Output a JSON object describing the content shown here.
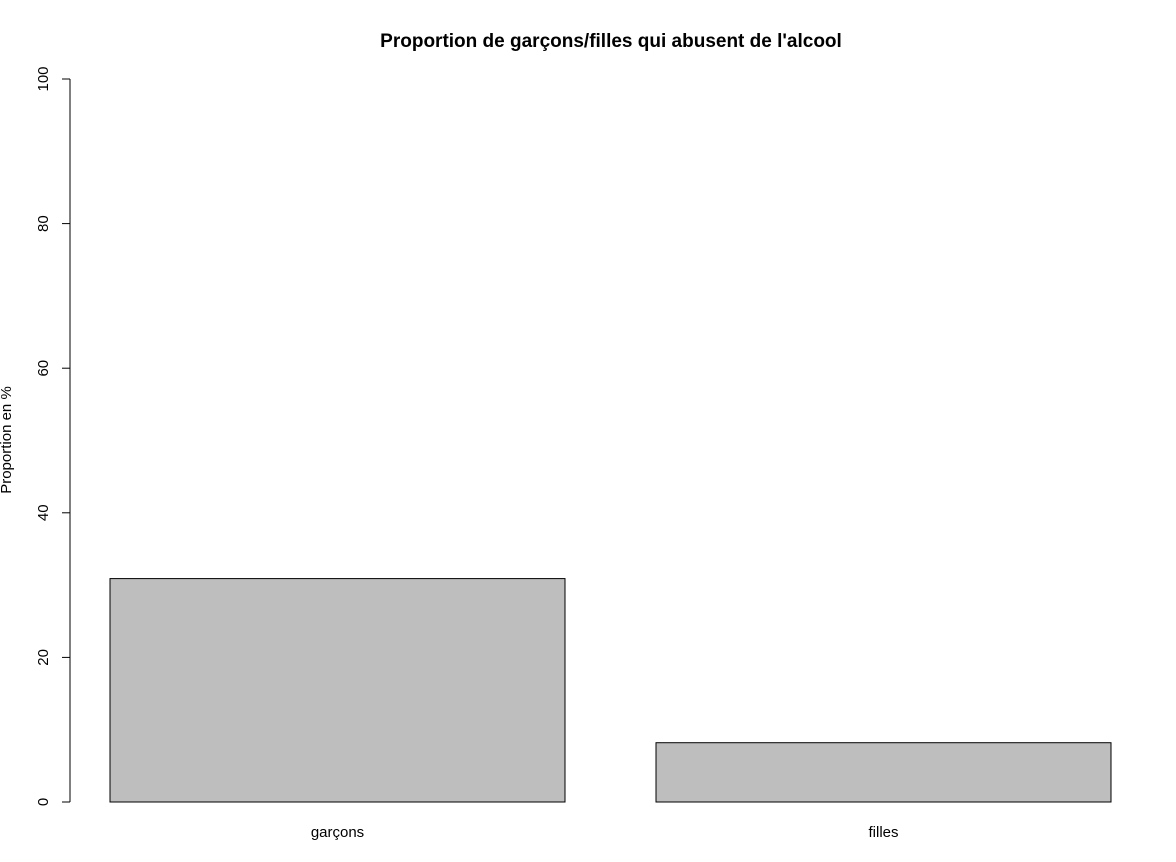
{
  "chart_data": {
    "type": "bar",
    "title": "Proportion de garçons/filles qui abusent de l'alcool",
    "xlabel": "",
    "ylabel": "Proportion en %",
    "categories": [
      "garçons",
      "filles"
    ],
    "values": [
      30.9,
      8.2
    ],
    "ylim": [
      0,
      100
    ],
    "yticks": [
      0,
      20,
      40,
      60,
      80,
      100
    ],
    "grid": false,
    "legend": "none",
    "bar_color": "#bebebe"
  }
}
